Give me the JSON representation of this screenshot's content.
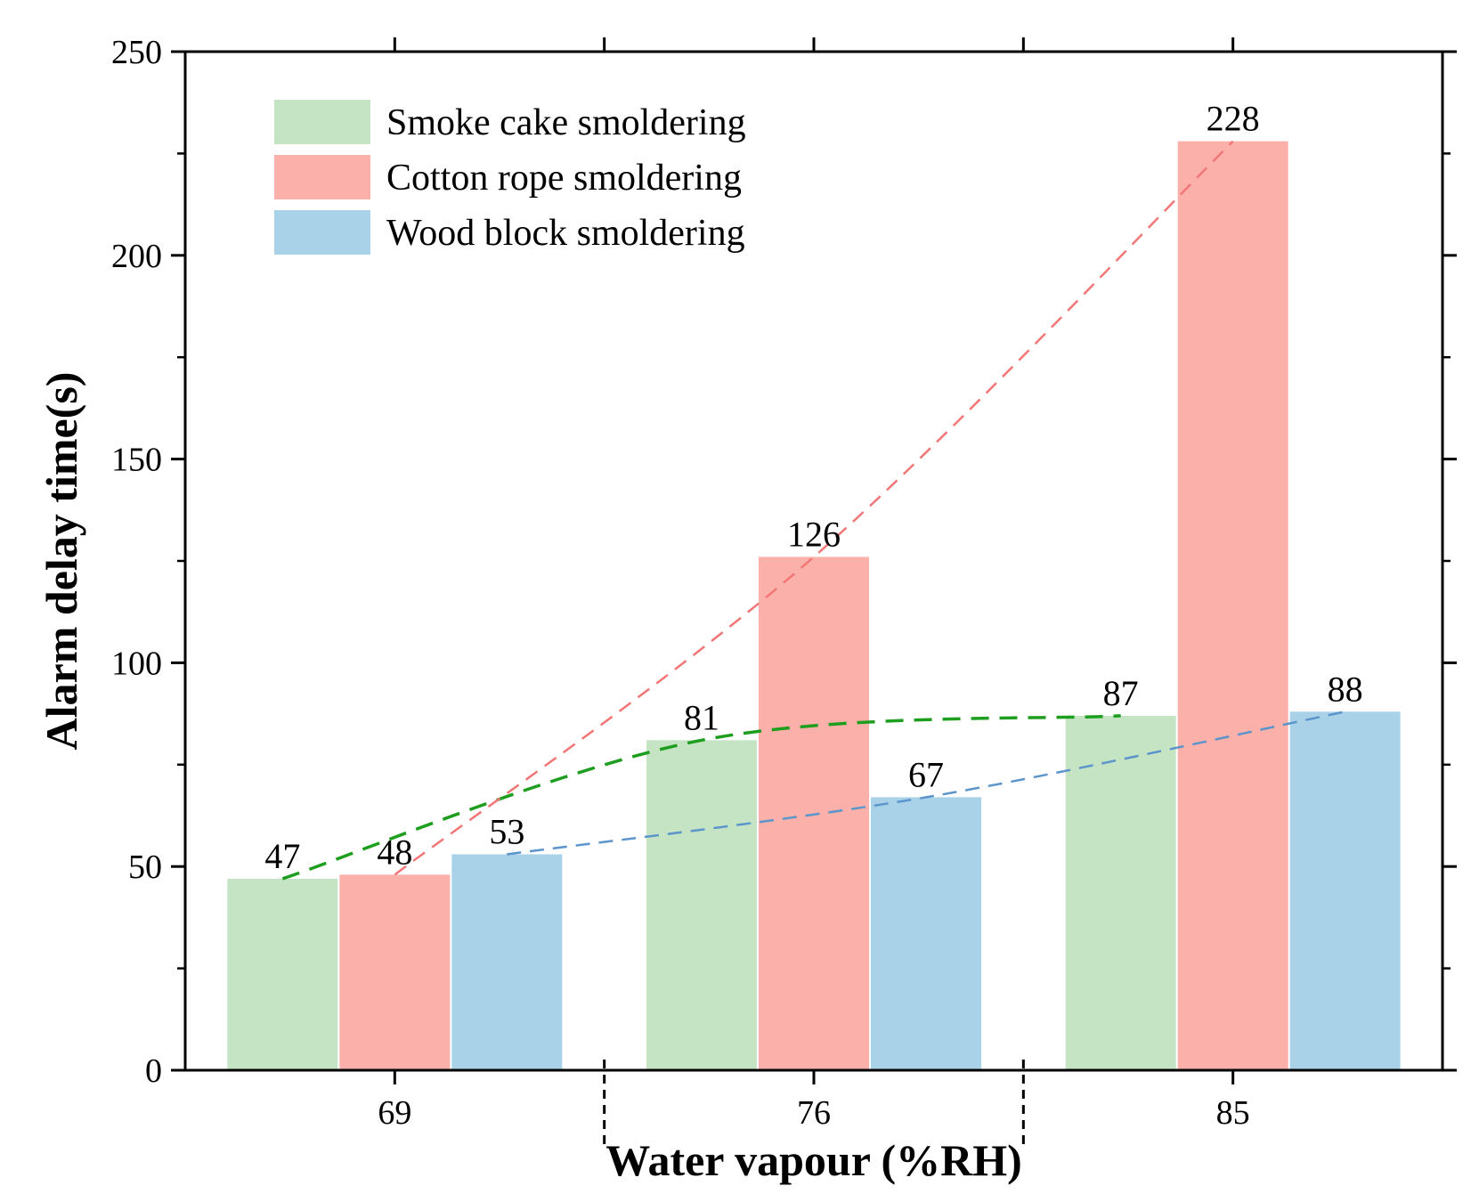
{
  "chart_data": {
    "type": "bar",
    "title": "",
    "xlabel": "Water vapour (%RH)",
    "ylabel": "Alarm delay time(s)",
    "categories": [
      "69",
      "76",
      "85"
    ],
    "ylim": [
      0,
      250
    ],
    "yticks": [
      0,
      50,
      100,
      150,
      200,
      250
    ],
    "grid": false,
    "legend_position": "top-left",
    "series": [
      {
        "name": "Smoke cake smoldering",
        "values": [
          47,
          81,
          87
        ],
        "value_labels": [
          "47",
          "81",
          "87"
        ],
        "color": "#c5e4c3",
        "trend_color": "#1e9e1e"
      },
      {
        "name": "Cotton rope smoldering",
        "values": [
          48,
          126,
          228
        ],
        "value_labels": [
          "48",
          "126",
          "228"
        ],
        "color": "#fbb0a9",
        "trend_color": "#f27676"
      },
      {
        "name": "Wood block smoldering",
        "values": [
          53,
          67,
          88
        ],
        "value_labels": [
          "53",
          "67",
          "88"
        ],
        "color": "#a9d2e9",
        "trend_color": "#5b95cc"
      }
    ],
    "annotations": "dashed trend lines connect bar tops of each series"
  }
}
